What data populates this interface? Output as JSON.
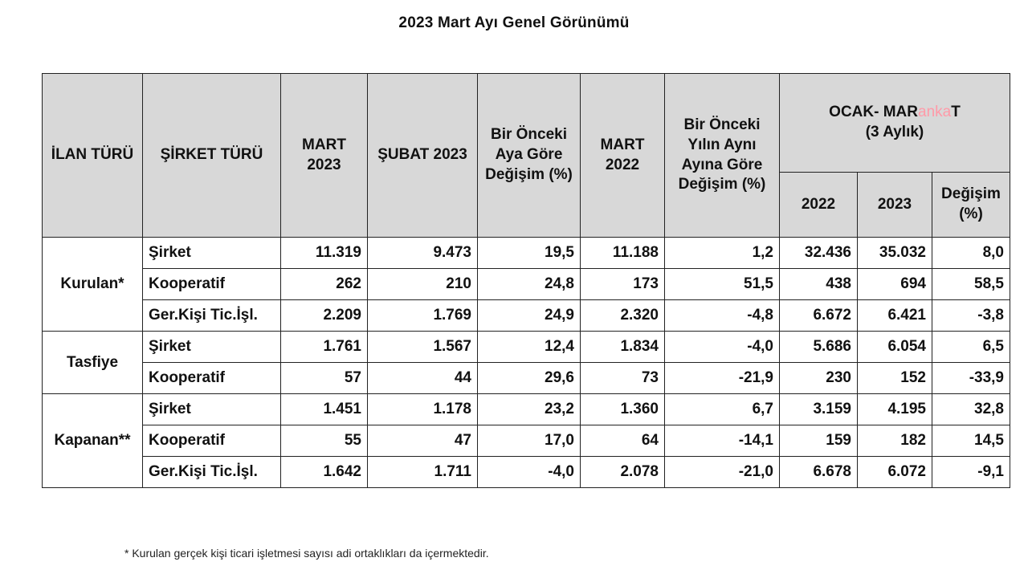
{
  "title": "2023 Mart Ayı Genel Görünümü",
  "headers": {
    "ilan_turu": "İLAN TÜRÜ",
    "sirket_turu": "ŞİRKET TÜRÜ",
    "mart_2023": "MART 2023",
    "subat_2023": "ŞUBAT 2023",
    "onceki_ay": "Bir Önceki Aya Göre Değişim (%)",
    "mart_2022": "MART 2022",
    "onceki_yil": "Bir Önceki Yılın Aynı Ayına Göre Değişim (%)",
    "ocak_mart_a": "OCAK- MAR",
    "ocak_mart_b": "T",
    "ocak_mart_c": "(3 Aylık)",
    "y2022": "2022",
    "y2023": "2023",
    "degisim": "Değişim (%)"
  },
  "watermark": "anka",
  "groups": {
    "kurulan": "Kurulan*",
    "tasfiye": "Tasfiye",
    "kapanan": "Kapanan**"
  },
  "rows": [
    {
      "type": "Şirket",
      "mart2023": "11.319",
      "subat2023": "9.473",
      "aylik": "19,5",
      "mart2022": "11.188",
      "yillik": "1,2",
      "om2022": "32.436",
      "om2023": "35.032",
      "om_degisim": "8,0"
    },
    {
      "type": "Kooperatif",
      "mart2023": "262",
      "subat2023": "210",
      "aylik": "24,8",
      "mart2022": "173",
      "yillik": "51,5",
      "om2022": "438",
      "om2023": "694",
      "om_degisim": "58,5"
    },
    {
      "type": "Ger.Kişi Tic.İşl.",
      "mart2023": "2.209",
      "subat2023": "1.769",
      "aylik": "24,9",
      "mart2022": "2.320",
      "yillik": "-4,8",
      "om2022": "6.672",
      "om2023": "6.421",
      "om_degisim": "-3,8"
    },
    {
      "type": "Şirket",
      "mart2023": "1.761",
      "subat2023": "1.567",
      "aylik": "12,4",
      "mart2022": "1.834",
      "yillik": "-4,0",
      "om2022": "5.686",
      "om2023": "6.054",
      "om_degisim": "6,5"
    },
    {
      "type": "Kooperatif",
      "mart2023": "57",
      "subat2023": "44",
      "aylik": "29,6",
      "mart2022": "73",
      "yillik": "-21,9",
      "om2022": "230",
      "om2023": "152",
      "om_degisim": "-33,9"
    },
    {
      "type": "Şirket",
      "mart2023": "1.451",
      "subat2023": "1.178",
      "aylik": "23,2",
      "mart2022": "1.360",
      "yillik": "6,7",
      "om2022": "3.159",
      "om2023": "4.195",
      "om_degisim": "32,8"
    },
    {
      "type": "Kooperatif",
      "mart2023": "55",
      "subat2023": "47",
      "aylik": "17,0",
      "mart2022": "64",
      "yillik": "-14,1",
      "om2022": "159",
      "om2023": "182",
      "om_degisim": "14,5"
    },
    {
      "type": "Ger.Kişi Tic.İşl.",
      "mart2023": "1.642",
      "subat2023": "1.711",
      "aylik": "-4,0",
      "mart2022": "2.078",
      "yillik": "-21,0",
      "om2022": "6.678",
      "om2023": "6.072",
      "om_degisim": "-9,1"
    }
  ],
  "footnote": "* Kurulan gerçek kişi ticari işletmesi sayısı adi ortaklıkları da içermektedir."
}
